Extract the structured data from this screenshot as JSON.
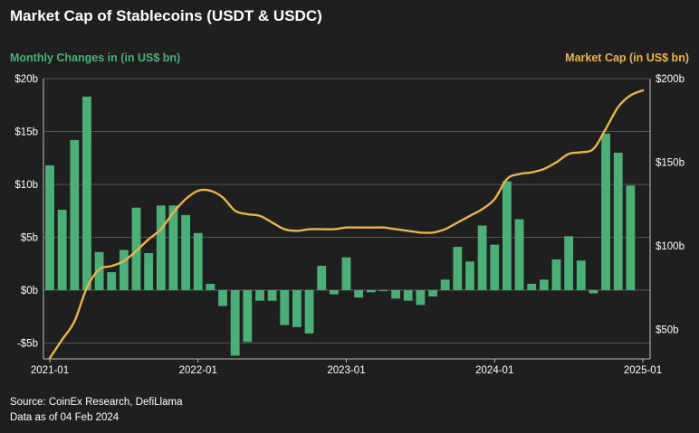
{
  "title": "Market Cap of Stablecoins (USDT & USDC)",
  "left_axis_label": "Monthly Changes in (in US$ bn)",
  "right_axis_label": "Market Cap (in US$ bn)",
  "source": "Source: CoinEx Research, DefiLlama",
  "data_note": "Data as of 04 Feb 2024",
  "colors": {
    "bars": "#4caf78",
    "line": "#e9b44c",
    "grid": "#555555",
    "background": "#1f1f1f"
  },
  "chart_data": {
    "type": "bar+line",
    "x_tick_labels": [
      "2021-01",
      "2022-01",
      "2023-01",
      "2024-01",
      "2025-01"
    ],
    "left_axis": {
      "ticks": [
        "-$5b",
        "$0b",
        "$5b",
        "$10b",
        "$15b",
        "$20b"
      ],
      "tick_values": [
        -5,
        0,
        5,
        10,
        15,
        20
      ],
      "ylim": [
        -6.5,
        20
      ]
    },
    "right_axis": {
      "ticks": [
        "$50b",
        "$100b",
        "$150b",
        "$200b"
      ],
      "tick_values": [
        50,
        100,
        150,
        200
      ],
      "ylim": [
        32.5,
        200
      ]
    },
    "grid": true,
    "series": [
      {
        "axis": "left",
        "kind": "bar",
        "months": [
          "2021-01",
          "2021-02",
          "2021-03",
          "2021-04",
          "2021-05",
          "2021-06",
          "2021-07",
          "2021-08",
          "2021-09",
          "2021-10",
          "2021-11",
          "2021-12",
          "2022-01",
          "2022-02",
          "2022-03",
          "2022-04",
          "2022-05",
          "2022-06",
          "2022-07",
          "2022-08",
          "2022-09",
          "2022-10",
          "2022-11",
          "2022-12",
          "2023-01",
          "2023-02",
          "2023-03",
          "2023-04",
          "2023-05",
          "2023-06",
          "2023-07",
          "2023-08",
          "2023-09",
          "2023-10",
          "2023-11",
          "2023-12",
          "2024-01",
          "2024-02",
          "2024-03",
          "2024-04",
          "2024-05",
          "2024-06",
          "2024-07",
          "2024-08",
          "2024-09",
          "2024-10",
          "2024-11",
          "2024-12",
          "2025-01"
        ],
        "values": [
          11.8,
          7.6,
          14.2,
          18.3,
          3.6,
          1.7,
          3.8,
          7.8,
          3.5,
          8.0,
          8.0,
          7.1,
          5.4,
          0.6,
          -1.5,
          -6.2,
          -4.9,
          -1.0,
          -1.0,
          -3.3,
          -3.5,
          -4.1,
          2.3,
          -0.4,
          3.1,
          -0.7,
          -0.2,
          -0.1,
          -0.8,
          -1.0,
          -1.4,
          -0.6,
          1.0,
          4.1,
          2.7,
          6.1,
          4.3,
          10.3,
          6.7,
          0.6,
          1.0,
          2.9,
          5.1,
          2.8,
          -0.3,
          14.8,
          13.0,
          9.9,
          null
        ]
      },
      {
        "axis": "right",
        "kind": "line",
        "months": [
          "2021-01",
          "2021-02",
          "2021-03",
          "2021-04",
          "2021-05",
          "2021-06",
          "2021-07",
          "2021-08",
          "2021-09",
          "2021-10",
          "2021-11",
          "2021-12",
          "2022-01",
          "2022-02",
          "2022-03",
          "2022-04",
          "2022-05",
          "2022-06",
          "2022-07",
          "2022-08",
          "2022-09",
          "2022-10",
          "2022-11",
          "2022-12",
          "2023-01",
          "2023-02",
          "2023-03",
          "2023-04",
          "2023-05",
          "2023-06",
          "2023-07",
          "2023-08",
          "2023-09",
          "2023-10",
          "2023-11",
          "2023-12",
          "2024-01",
          "2024-02",
          "2024-03",
          "2024-04",
          "2024-05",
          "2024-06",
          "2024-07",
          "2024-08",
          "2024-09",
          "2024-10",
          "2024-11",
          "2024-12",
          "2025-01"
        ],
        "values": [
          33,
          44,
          55,
          75,
          86,
          88,
          91,
          97,
          104,
          110,
          120,
          128,
          133,
          133,
          129,
          121,
          119,
          118,
          114,
          110,
          109,
          110,
          110,
          110,
          111,
          111,
          111,
          111,
          110,
          109,
          108,
          108,
          110,
          114,
          118,
          122,
          128,
          140,
          143,
          144,
          146,
          150,
          155,
          156,
          158,
          170,
          183,
          190,
          193
        ]
      }
    ]
  }
}
